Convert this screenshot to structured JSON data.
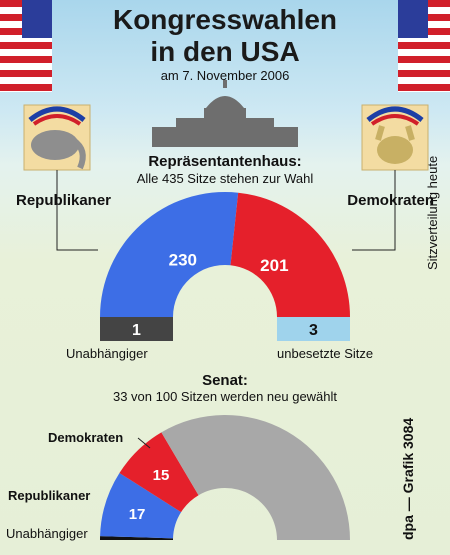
{
  "title_line1": "Kongresswahlen",
  "title_line2": "in den USA",
  "date": "am 7. November 2006",
  "side_note": "Sitzverteilung heute",
  "credit": "dpa — Grafik 3084",
  "colors": {
    "republican": "#3d6ee6",
    "democrat": "#e5202b",
    "independent": "#444444",
    "vacant": "#9fd3ec",
    "up_for_election": "#a8a8a8",
    "black_seat": "#111111"
  },
  "icons": [
    "us-flag-icon",
    "capitol-icon",
    "elephant-icon",
    "donkey-icon"
  ],
  "chart_data": [
    {
      "type": "half-donut",
      "title": "Repräsentantenhaus:",
      "subtitle": "Alle 435 Sitze stehen zur Wahl",
      "total": 435,
      "series": [
        {
          "name": "Republikaner",
          "value": 230,
          "color": "#3d6ee6"
        },
        {
          "name": "Demokraten",
          "value": 201,
          "color": "#e5202b"
        }
      ],
      "other": [
        {
          "name": "Unabhängiger",
          "value": 1,
          "color": "#444444"
        },
        {
          "name": "unbesetzte Sitze",
          "value": 3,
          "color": "#9fd3ec"
        }
      ]
    },
    {
      "type": "half-donut",
      "title": "Senat:",
      "subtitle": "33 von 100 Sitzen werden neu gewählt",
      "total": 100,
      "series": [
        {
          "name": "Unabhängiger",
          "value": 1,
          "color": "#111111"
        },
        {
          "name": "Republikaner",
          "value": 17,
          "color": "#3d6ee6"
        },
        {
          "name": "Demokraten",
          "value": 15,
          "color": "#e5202b"
        },
        {
          "name": "",
          "value": 67,
          "color": "#a8a8a8"
        }
      ]
    }
  ]
}
